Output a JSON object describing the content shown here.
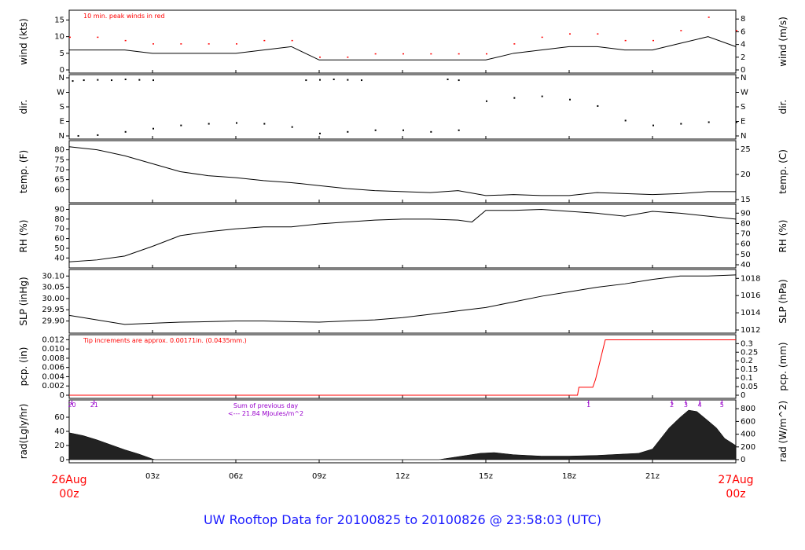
{
  "footer": {
    "title": "UW Rooftop Data for 20100825  to  20100826 @ 23:58:03  (UTC)"
  },
  "dates": {
    "start_date": "26Aug",
    "start_time": "00z",
    "end_date": "27Aug",
    "end_time": "00z"
  },
  "hour_labels": [
    "03z",
    "06z",
    "09z",
    "12z",
    "15z",
    "18z",
    "21z"
  ],
  "colors": {
    "data_line": "#000000",
    "peak_wind": "#ff0000",
    "precip": "#ff0000",
    "annotation_red": "#ff0000",
    "annotation_purple": "#9900cc",
    "footer": "#1a1aff",
    "date_labels": "#ff0000"
  },
  "chart_data": [
    {
      "type": "line",
      "panel": "wind",
      "ylabel_left": "wind (kts)",
      "ylabel_right": "wind (m/s)",
      "left_ticks": [
        "0",
        "5",
        "10",
        "15"
      ],
      "right_ticks": [
        "0",
        "2",
        "4",
        "6",
        "8"
      ],
      "ylim": [
        0,
        17
      ],
      "annotation": "10 min. peak winds in red",
      "series": [
        {
          "name": "10 min. peak winds in red",
          "x": [
            0,
            1,
            2,
            3,
            4,
            5,
            6,
            7,
            8,
            9,
            10,
            11,
            12,
            13,
            14,
            15,
            16,
            17,
            18,
            19,
            20,
            21,
            22,
            23,
            24
          ],
          "values": [
            10,
            10,
            9,
            8,
            8,
            8,
            8,
            9,
            9,
            4,
            4,
            5,
            5,
            5,
            5,
            5,
            8,
            10,
            11,
            11,
            9,
            9,
            12,
            16,
            12
          ]
        },
        {
          "x": [
            0,
            1,
            2,
            3,
            4,
            5,
            6,
            7,
            8,
            9,
            10,
            11,
            12,
            13,
            14,
            15,
            16,
            17,
            18,
            19,
            20,
            21,
            22,
            23,
            24
          ],
          "values": [
            6,
            6,
            6,
            5,
            5,
            5,
            5,
            6,
            7,
            3,
            3,
            3,
            3,
            3,
            3,
            3,
            5,
            6,
            7,
            7,
            6,
            6,
            8,
            10,
            7
          ]
        }
      ]
    },
    {
      "type": "scatter",
      "panel": "direction",
      "ylabel_left": "dir.",
      "ylabel_right": "dir.",
      "left_ticks": [
        "N",
        "E",
        "S",
        "W",
        "N"
      ],
      "right_ticks": [
        "N",
        "E",
        "S",
        "W",
        "N"
      ],
      "ylim": [
        0,
        360
      ],
      "series": [
        {
          "x": [
            0.1,
            0.5,
            1,
            1.5,
            2,
            2.5,
            3,
            8.5,
            9,
            9.5,
            10,
            10.5,
            13.6,
            14
          ],
          "values": [
            345,
            350,
            352,
            350,
            355,
            352,
            350,
            350,
            352,
            355,
            352,
            350,
            355,
            350
          ]
        },
        {
          "x": [
            0.3,
            1,
            2,
            3,
            4,
            5,
            6,
            7,
            8,
            9,
            10,
            11,
            12,
            13,
            14,
            15,
            16,
            17,
            18,
            19,
            20,
            21,
            22,
            23,
            24
          ],
          "values": [
            5,
            10,
            30,
            50,
            70,
            80,
            85,
            80,
            60,
            20,
            30,
            40,
            40,
            30,
            40,
            220,
            240,
            250,
            230,
            190,
            100,
            70,
            80,
            90,
            90
          ]
        }
      ]
    },
    {
      "type": "line",
      "panel": "temperature",
      "ylabel_left": "temp. (F)",
      "ylabel_right": "temp. (C)",
      "left_ticks": [
        "60",
        "65",
        "70",
        "75",
        "80"
      ],
      "right_ticks": [
        "15",
        "20",
        "25"
      ],
      "ylim": [
        55,
        83
      ],
      "series": [
        {
          "x": [
            0,
            1,
            2,
            3,
            4,
            5,
            6,
            7,
            8,
            9,
            10,
            11,
            12,
            13,
            14,
            15,
            16,
            17,
            18,
            19,
            20,
            21,
            22,
            23,
            24
          ],
          "values": [
            81.5,
            80,
            77,
            73,
            69,
            67,
            66,
            64.5,
            63.5,
            62,
            60.5,
            59.5,
            59,
            58.5,
            59.5,
            57,
            57.5,
            57,
            57,
            58.5,
            58,
            57.5,
            58,
            59,
            59
          ]
        }
      ]
    },
    {
      "type": "line",
      "panel": "relative_humidity",
      "ylabel_left": "RH (%)",
      "ylabel_right": "RH (%)",
      "left_ticks": [
        "40",
        "50",
        "60",
        "70",
        "80",
        "90"
      ],
      "right_ticks": [
        "40",
        "50",
        "60",
        "70",
        "80",
        "90"
      ],
      "ylim": [
        33,
        92
      ],
      "series": [
        {
          "x": [
            0,
            1,
            2,
            3,
            4,
            5,
            6,
            7,
            8,
            9,
            10,
            11,
            12,
            13,
            14,
            14.5,
            15,
            16,
            17,
            18,
            19,
            20,
            21,
            22,
            23,
            24
          ],
          "values": [
            36,
            38,
            42,
            52,
            63,
            67,
            70,
            72,
            72,
            75,
            77,
            79,
            80,
            80,
            79,
            77,
            89,
            89,
            90,
            88,
            86,
            83,
            88,
            86,
            83,
            80
          ]
        }
      ]
    },
    {
      "type": "line",
      "panel": "sea_level_pressure",
      "ylabel_left": "SLP (inHg)",
      "ylabel_right": "SLP (hPa)",
      "left_ticks": [
        "29.90",
        "29.95",
        "30.00",
        "30.05",
        "30.10"
      ],
      "right_ticks": [
        "1012",
        "1014",
        "1016",
        "1018"
      ],
      "ylim": [
        29.86,
        30.115
      ],
      "series": [
        {
          "x": [
            0,
            1,
            2,
            3,
            4,
            5,
            6,
            7,
            8,
            9,
            10,
            11,
            12,
            13,
            14,
            15,
            16,
            17,
            18,
            19,
            20,
            21,
            22,
            23,
            24
          ],
          "values": [
            29.925,
            29.905,
            29.885,
            29.89,
            29.895,
            29.897,
            29.9,
            29.9,
            29.897,
            29.895,
            29.9,
            29.905,
            29.915,
            29.93,
            29.945,
            29.96,
            29.985,
            30.01,
            30.03,
            30.05,
            30.065,
            30.085,
            30.1,
            30.1,
            30.105
          ]
        }
      ]
    },
    {
      "type": "line",
      "panel": "precipitation",
      "ylabel_left": "pcp. (in)",
      "ylabel_right": "pcp. (mm)",
      "left_ticks": [
        "0",
        "0.002",
        "0.004",
        "0.006",
        "0.008",
        "0.010",
        "0.012"
      ],
      "right_ticks": [
        "0",
        "0.05",
        "0.1",
        "0.15",
        "0.2",
        "0.25",
        "0.3"
      ],
      "ylim": [
        0,
        0.0124
      ],
      "annotation": "Tip increments are approx. 0.00171in. (0.0435mm.)",
      "series": [
        {
          "x": [
            0,
            18.3,
            18.35,
            18.85,
            18.95,
            19.3,
            24
          ],
          "values": [
            0,
            0,
            0.00171,
            0.00171,
            0.00342,
            0.01197,
            0.01197
          ]
        }
      ]
    },
    {
      "type": "area",
      "panel": "radiation",
      "ylabel_left": "rad(Lgly/hr)",
      "ylabel_right": "rad (W/m^2)",
      "left_ticks": [
        "0",
        "20",
        "40",
        "60"
      ],
      "right_ticks": [
        "0",
        "200",
        "400",
        "600",
        "800"
      ],
      "ylim": [
        0,
        80
      ],
      "top_markers": [
        {
          "x": 0.1,
          "label": "20"
        },
        {
          "x": 0.9,
          "label": "21"
        },
        {
          "x": 18.7,
          "label": "1"
        },
        {
          "x": 21.7,
          "label": "2"
        },
        {
          "x": 22.2,
          "label": "3"
        },
        {
          "x": 22.7,
          "label": "4"
        },
        {
          "x": 23.5,
          "label": "5"
        }
      ],
      "annotation_line1": "Sum of previous day",
      "annotation_line2": "<--- 21.84 MJoules/m^2",
      "series": [
        {
          "x": [
            0,
            0.5,
            1,
            1.5,
            2,
            2.5,
            3,
            3.1,
            13.3,
            13.8,
            14.3,
            14.8,
            15.3,
            16,
            17,
            18,
            19,
            20,
            20.5,
            21,
            21.3,
            21.6,
            22,
            22.3,
            22.6,
            23,
            23.3,
            23.6,
            24
          ],
          "values": [
            38,
            34,
            28,
            21,
            14,
            8,
            1,
            0,
            0,
            3,
            6,
            9,
            10,
            7,
            5,
            5,
            6,
            8,
            9,
            15,
            30,
            45,
            60,
            70,
            68,
            55,
            45,
            30,
            20
          ]
        }
      ]
    }
  ]
}
